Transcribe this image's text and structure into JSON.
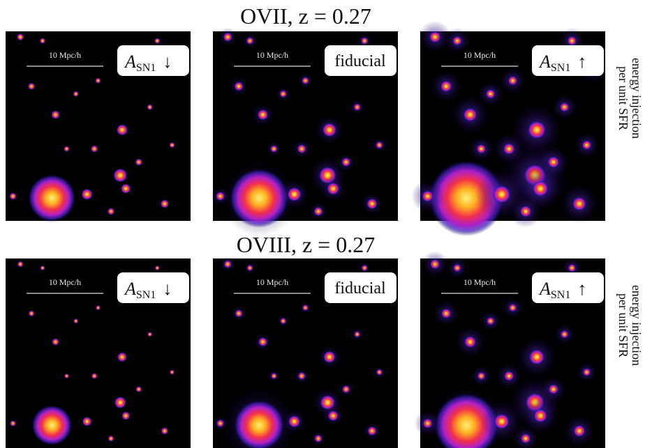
{
  "rows": [
    {
      "title": "OVII, z = 0.27",
      "panels": [
        {
          "scale_label": "10 Mpc/h",
          "label_main": "A",
          "label_sub": "SN1",
          "label_arrow": "↓"
        },
        {
          "scale_label": "10 Mpc/h",
          "label_text": "fiducial"
        },
        {
          "scale_label": "10 Mpc/h",
          "label_main": "A",
          "label_sub": "SN1",
          "label_arrow": "↑"
        }
      ],
      "side_label": [
        "energy injection",
        "per unit SFR"
      ]
    },
    {
      "title": "OVIII, z = 0.27",
      "panels": [
        {
          "scale_label": "10 Mpc/h",
          "label_main": "A",
          "label_sub": "SN1",
          "label_arrow": "↓"
        },
        {
          "scale_label": "10 Mpc/h",
          "label_text": "fiducial"
        },
        {
          "scale_label": "10 Mpc/h",
          "label_main": "A",
          "label_sub": "SN1",
          "label_arrow": "↑"
        }
      ],
      "side_label": [
        "energy injection",
        "per unit SFR"
      ]
    }
  ]
}
